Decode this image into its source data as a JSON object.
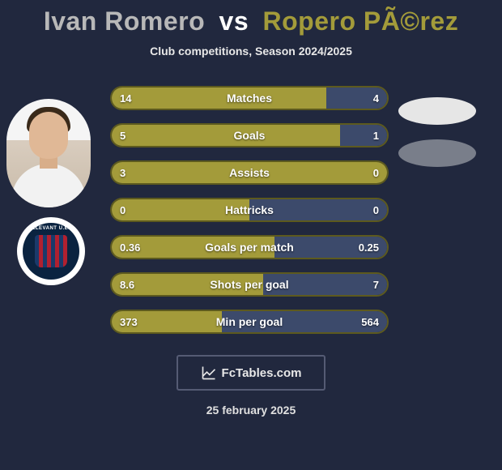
{
  "title": {
    "player1": "Ivan Romero",
    "vs": "vs",
    "player2": "Ropero PÃ©rez"
  },
  "subtitle": "Club competitions, Season 2024/2025",
  "colors": {
    "background": "#21283e",
    "player1_bar": "#a39b3a",
    "player2_bar": "#3c4a6b",
    "bar_border": "#5d5a1e",
    "text": "#ffffff",
    "title_p1": "#b8b8b8",
    "title_p2": "#a39b3a",
    "footer_border": "#555b74"
  },
  "stats": [
    {
      "label": "Matches",
      "left_val": "14",
      "right_val": "4",
      "left_pct": 78
    },
    {
      "label": "Goals",
      "left_val": "5",
      "right_val": "1",
      "left_pct": 83
    },
    {
      "label": "Assists",
      "left_val": "3",
      "right_val": "0",
      "left_pct": 100
    },
    {
      "label": "Hattricks",
      "left_val": "0",
      "right_val": "0",
      "left_pct": 50
    },
    {
      "label": "Goals per match",
      "left_val": "0.36",
      "right_val": "0.25",
      "left_pct": 59
    },
    {
      "label": "Shots per goal",
      "left_val": "8.6",
      "right_val": "7",
      "left_pct": 55
    },
    {
      "label": "Min per goal",
      "left_val": "373",
      "right_val": "564",
      "left_pct": 40
    }
  ],
  "badge_text": "LLEVANT U.E.",
  "footer_brand": "FcTables.com",
  "date": "25 february 2025",
  "right_ovals": [
    {
      "color": "#e6e6e6"
    },
    {
      "color": "#797e8a"
    }
  ]
}
